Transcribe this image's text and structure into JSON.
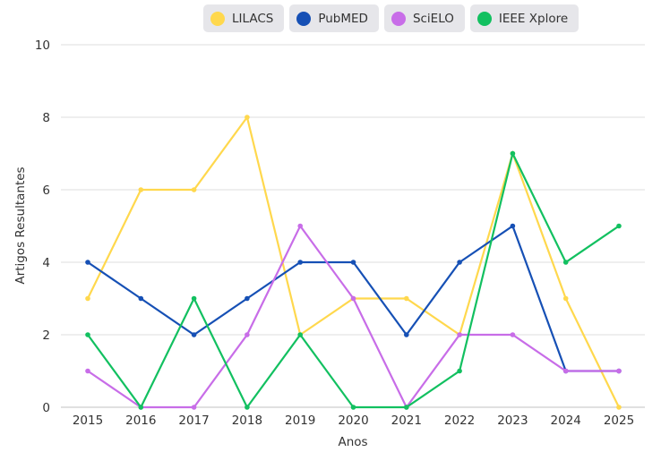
{
  "chart_data": {
    "type": "line",
    "title": "",
    "xlabel": "Anos",
    "ylabel": "Artigos Resultantes",
    "x": [
      2015,
      2016,
      2017,
      2018,
      2019,
      2020,
      2021,
      2022,
      2023,
      2024,
      2025
    ],
    "x_tick_labels": [
      "2015",
      "2016",
      "2017",
      "2018",
      "2019",
      "2020",
      "2021",
      "2022",
      "2023",
      "2024",
      "2025"
    ],
    "ylim": [
      0,
      10
    ],
    "y_ticks": [
      0,
      2,
      4,
      6,
      8,
      10
    ],
    "y_tick_labels": [
      "0",
      "2",
      "4",
      "6",
      "8",
      "10"
    ],
    "grid": true,
    "legend_position": "top",
    "series": [
      {
        "name": "LILACS",
        "color": "#FFD84D",
        "values": [
          3,
          6,
          6,
          8,
          2,
          3,
          3,
          2,
          7,
          3,
          0
        ]
      },
      {
        "name": "PubMED",
        "color": "#1650B5",
        "values": [
          4,
          3,
          2,
          3,
          4,
          4,
          2,
          4,
          5,
          1,
          1
        ]
      },
      {
        "name": "SciELO",
        "color": "#C86DE8",
        "values": [
          1,
          0,
          0,
          2,
          5,
          3,
          0,
          2,
          2,
          1,
          1
        ]
      },
      {
        "name": "IEEE Xplore",
        "color": "#12C060",
        "values": [
          2,
          0,
          3,
          0,
          2,
          0,
          0,
          1,
          7,
          4,
          5
        ]
      }
    ]
  }
}
